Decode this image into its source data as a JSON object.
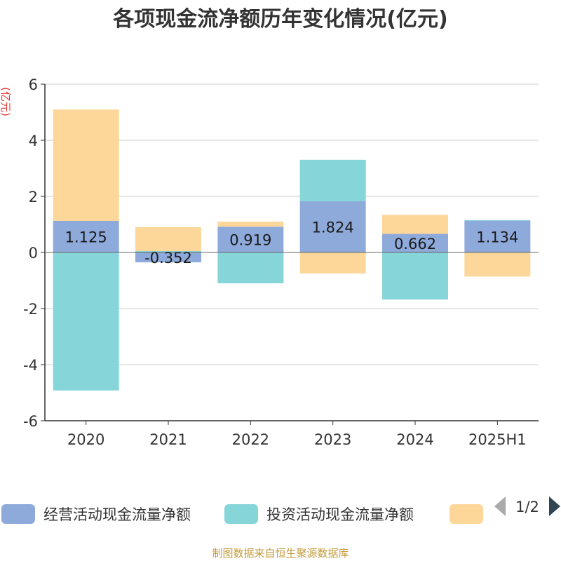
{
  "chart_data": {
    "type": "bar",
    "stacked": true,
    "title": "各项现金流净额历年变化情况(亿元)",
    "ylabel": "(亿元)",
    "categories": [
      "2020",
      "2021",
      "2022",
      "2023",
      "2024",
      "2025H1"
    ],
    "ylim": [
      -6,
      6
    ],
    "yticks": [
      6,
      4,
      2,
      0,
      -2,
      -4,
      -6
    ],
    "grid": true,
    "series": [
      {
        "name": "经营活动现金流量净额",
        "color": "#8eaadb",
        "values": [
          1.125,
          -0.352,
          0.919,
          1.824,
          0.662,
          1.134
        ],
        "labels": [
          "1.125",
          "-0.352",
          "0.919",
          "1.824",
          "0.662",
          "1.134"
        ]
      },
      {
        "name": "投资活动现金流量净额",
        "color": "#86d5d8",
        "values": [
          -4.92,
          0.05,
          -1.1,
          1.48,
          -1.68,
          0.02
        ]
      },
      {
        "name": "",
        "color": "#fdd79a",
        "values": [
          3.97,
          0.85,
          0.18,
          -0.75,
          0.68,
          -0.86
        ]
      }
    ],
    "legend": {
      "position": "bottom",
      "page": "1/2"
    }
  },
  "footer": "制图数据来自恒生聚源数据库"
}
